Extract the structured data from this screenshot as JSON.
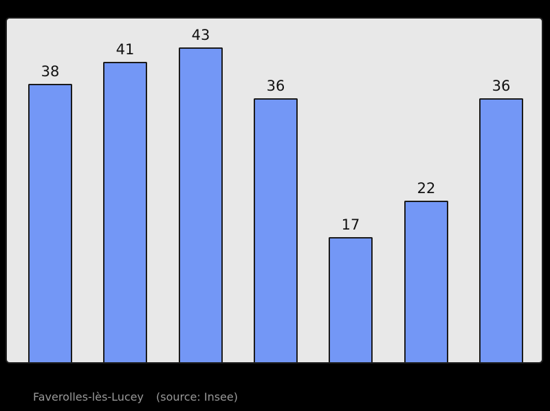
{
  "chart_data": {
    "type": "bar",
    "values": [
      38,
      41,
      43,
      36,
      17,
      22,
      36
    ],
    "title": "",
    "xlabel": "",
    "ylabel": "",
    "ylim": [
      0,
      47
    ],
    "grid": false,
    "legend": false,
    "x_tick_labels_visible": false,
    "y_axis_visible": false,
    "bar_labels": [
      "38",
      "41",
      "43",
      "36",
      "17",
      "22",
      "36"
    ],
    "colors": {
      "bar_fill": "#7397f6",
      "bar_border": "#1a1a1a",
      "plot_background": "#e8e8e8",
      "frame_border": "#1f1f1f",
      "outer_background": "#000000",
      "value_label": "#111111",
      "caption_text": "#999999"
    }
  },
  "caption": {
    "title": "Faverolles-lès-Lucey",
    "source": "(source: Insee)"
  }
}
